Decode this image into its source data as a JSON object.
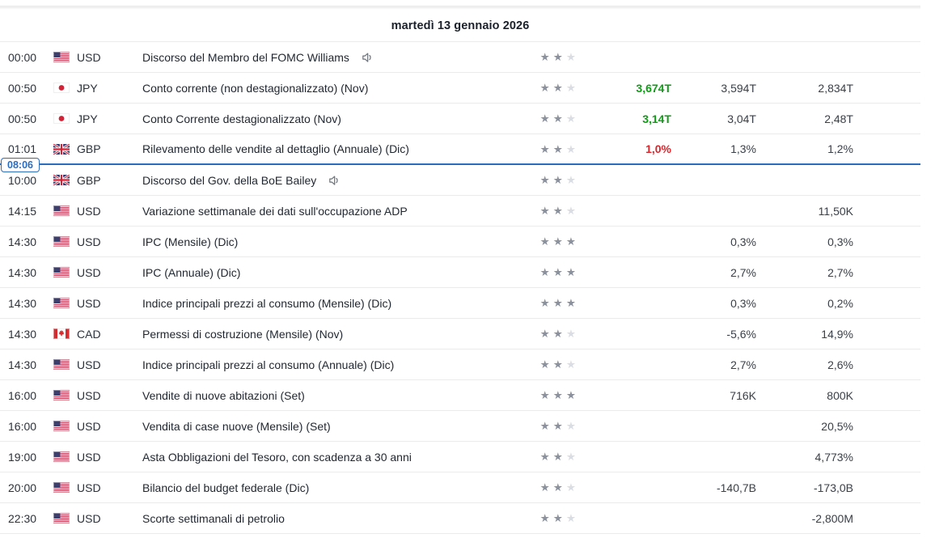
{
  "colors": {
    "green": "#0f9d15",
    "red": "#d8262c",
    "blue": "#2b6cbf",
    "star_filled": "#8b919d",
    "star_empty": "#dadde3"
  },
  "calendar": {
    "date_header": "martedì 13 gennaio 2026",
    "now_marker": {
      "time": "08:06"
    },
    "columns": [
      "time",
      "currency",
      "event",
      "importance",
      "actual",
      "forecast",
      "previous"
    ],
    "rows": [
      {
        "time": "00:00",
        "currency": "USD",
        "flag": "us",
        "event": "Discorso del Membro del FOMC Williams",
        "speech": true,
        "importance": 2,
        "actual": "",
        "actual_state": "",
        "forecast": "",
        "previous": "",
        "now_after": false
      },
      {
        "time": "00:50",
        "currency": "JPY",
        "flag": "jp",
        "event": "Conto corrente (non destagionalizzato) (Nov)",
        "speech": false,
        "importance": 2,
        "actual": "3,674T",
        "actual_state": "up",
        "forecast": "3,594T",
        "previous": "2,834T",
        "now_after": false
      },
      {
        "time": "00:50",
        "currency": "JPY",
        "flag": "jp",
        "event": "Conto Corrente destagionalizzato (Nov)",
        "speech": false,
        "importance": 2,
        "actual": "3,14T",
        "actual_state": "up",
        "forecast": "3,04T",
        "previous": "2,48T",
        "now_after": false
      },
      {
        "time": "01:01",
        "currency": "GBP",
        "flag": "gb",
        "event": "Rilevamento delle vendite al dettaglio (Annuale) (Dic)",
        "speech": false,
        "importance": 2,
        "actual": "1,0%",
        "actual_state": "down",
        "forecast": "1,3%",
        "previous": "1,2%",
        "now_after": true
      },
      {
        "time": "10:00",
        "currency": "GBP",
        "flag": "gb",
        "event": "Discorso del Gov. della BoE Bailey",
        "speech": true,
        "importance": 2,
        "actual": "",
        "actual_state": "",
        "forecast": "",
        "previous": "",
        "now_after": false
      },
      {
        "time": "14:15",
        "currency": "USD",
        "flag": "us",
        "event": "Variazione settimanale dei dati sull'occupazione ADP",
        "speech": false,
        "importance": 2,
        "actual": "",
        "actual_state": "",
        "forecast": "",
        "previous": "11,50K",
        "now_after": false
      },
      {
        "time": "14:30",
        "currency": "USD",
        "flag": "us",
        "event": "IPC (Mensile) (Dic)",
        "speech": false,
        "importance": 3,
        "actual": "",
        "actual_state": "",
        "forecast": "0,3%",
        "previous": "0,3%",
        "now_after": false
      },
      {
        "time": "14:30",
        "currency": "USD",
        "flag": "us",
        "event": "IPC (Annuale) (Dic)",
        "speech": false,
        "importance": 3,
        "actual": "",
        "actual_state": "",
        "forecast": "2,7%",
        "previous": "2,7%",
        "now_after": false
      },
      {
        "time": "14:30",
        "currency": "USD",
        "flag": "us",
        "event": "Indice principali prezzi al consumo (Mensile) (Dic)",
        "speech": false,
        "importance": 3,
        "actual": "",
        "actual_state": "",
        "forecast": "0,3%",
        "previous": "0,2%",
        "now_after": false
      },
      {
        "time": "14:30",
        "currency": "CAD",
        "flag": "ca",
        "event": "Permessi di costruzione (Mensile) (Nov)",
        "speech": false,
        "importance": 2,
        "actual": "",
        "actual_state": "",
        "forecast": "-5,6%",
        "previous": "14,9%",
        "now_after": false
      },
      {
        "time": "14:30",
        "currency": "USD",
        "flag": "us",
        "event": "Indice principali prezzi al consumo (Annuale) (Dic)",
        "speech": false,
        "importance": 2,
        "actual": "",
        "actual_state": "",
        "forecast": "2,7%",
        "previous": "2,6%",
        "now_after": false
      },
      {
        "time": "16:00",
        "currency": "USD",
        "flag": "us",
        "event": "Vendite di nuove abitazioni (Set)",
        "speech": false,
        "importance": 3,
        "actual": "",
        "actual_state": "",
        "forecast": "716K",
        "previous": "800K",
        "now_after": false
      },
      {
        "time": "16:00",
        "currency": "USD",
        "flag": "us",
        "event": "Vendita di case nuove (Mensile) (Set)",
        "speech": false,
        "importance": 2,
        "actual": "",
        "actual_state": "",
        "forecast": "",
        "previous": "20,5%",
        "now_after": false
      },
      {
        "time": "19:00",
        "currency": "USD",
        "flag": "us",
        "event": "Asta Obbligazioni del Tesoro, con scadenza a 30 anni",
        "speech": false,
        "importance": 2,
        "actual": "",
        "actual_state": "",
        "forecast": "",
        "previous": "4,773%",
        "now_after": false
      },
      {
        "time": "20:00",
        "currency": "USD",
        "flag": "us",
        "event": "Bilancio del budget federale (Dic)",
        "speech": false,
        "importance": 2,
        "actual": "",
        "actual_state": "",
        "forecast": "-140,7B",
        "previous": "-173,0B",
        "now_after": false
      },
      {
        "time": "22:30",
        "currency": "USD",
        "flag": "us",
        "event": "Scorte settimanali di petrolio",
        "speech": false,
        "importance": 2,
        "actual": "",
        "actual_state": "",
        "forecast": "",
        "previous": "-2,800M",
        "now_after": false
      }
    ]
  }
}
